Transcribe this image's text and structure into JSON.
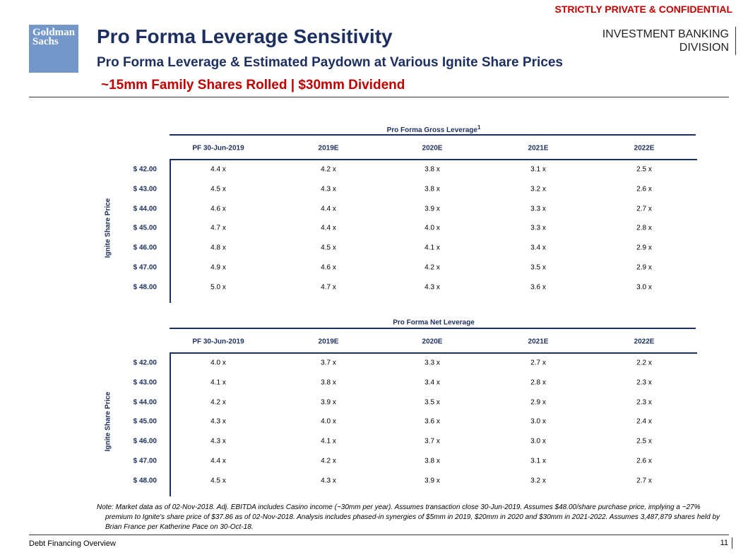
{
  "header": {
    "confidential": "STRICTLY PRIVATE & CONFIDENTIAL",
    "logo": [
      "Goldman",
      "Sachs"
    ],
    "title": "Pro Forma Leverage Sensitivity",
    "subtitle": "Pro Forma Leverage & Estimated Paydown at Various Ignite Share Prices",
    "scenario": "~15mm Family Shares Rolled | $30mm Dividend",
    "division": [
      "INVESTMENT BANKING",
      "DIVISION"
    ]
  },
  "tables": [
    {
      "title": "Pro Forma Gross Leverage",
      "footnote_mark": "1",
      "row_axis_label": "Ignite Share Price",
      "columns": [
        "PF 30-Jun-2019",
        "2019E",
        "2020E",
        "2021E",
        "2022E"
      ],
      "rows": [
        {
          "price": "$ 42.00",
          "values": [
            "4.4 x",
            "4.2 x",
            "3.8 x",
            "3.1 x",
            "2.5 x"
          ]
        },
        {
          "price": "$ 43.00",
          "values": [
            "4.5 x",
            "4.3 x",
            "3.8 x",
            "3.2 x",
            "2.6 x"
          ]
        },
        {
          "price": "$ 44.00",
          "values": [
            "4.6 x",
            "4.4 x",
            "3.9 x",
            "3.3 x",
            "2.7 x"
          ]
        },
        {
          "price": "$ 45.00",
          "values": [
            "4.7 x",
            "4.4 x",
            "4.0 x",
            "3.3 x",
            "2.8 x"
          ]
        },
        {
          "price": "$ 46.00",
          "values": [
            "4.8 x",
            "4.5 x",
            "4.1 x",
            "3.4 x",
            "2.9 x"
          ]
        },
        {
          "price": "$ 47.00",
          "values": [
            "4.9 x",
            "4.6 x",
            "4.2 x",
            "3.5 x",
            "2.9 x"
          ]
        },
        {
          "price": "$ 48.00",
          "values": [
            "5.0 x",
            "4.7 x",
            "4.3 x",
            "3.6 x",
            "3.0 x"
          ]
        }
      ]
    },
    {
      "title": "Pro Forma Net Leverage",
      "row_axis_label": "Ignite Share Price",
      "columns": [
        "PF 30-Jun-2019",
        "2019E",
        "2020E",
        "2021E",
        "2022E"
      ],
      "rows": [
        {
          "price": "$ 42.00",
          "values": [
            "4.0 x",
            "3.7 x",
            "3.3 x",
            "2.7 x",
            "2.2 x"
          ]
        },
        {
          "price": "$ 43.00",
          "values": [
            "4.1 x",
            "3.8 x",
            "3.4 x",
            "2.8 x",
            "2.3 x"
          ]
        },
        {
          "price": "$ 44.00",
          "values": [
            "4.2 x",
            "3.9 x",
            "3.5 x",
            "2.9 x",
            "2.3 x"
          ]
        },
        {
          "price": "$ 45.00",
          "values": [
            "4.3 x",
            "4.0 x",
            "3.6 x",
            "3.0 x",
            "2.4 x"
          ]
        },
        {
          "price": "$ 46.00",
          "values": [
            "4.3 x",
            "4.1 x",
            "3.7 x",
            "3.0 x",
            "2.5 x"
          ]
        },
        {
          "price": "$ 47.00",
          "values": [
            "4.4 x",
            "4.2 x",
            "3.8 x",
            "3.1 x",
            "2.6 x"
          ]
        },
        {
          "price": "$ 48.00",
          "values": [
            "4.5 x",
            "4.3 x",
            "3.9 x",
            "3.2 x",
            "2.7 x"
          ]
        }
      ]
    }
  ],
  "note": "Note: Market data as of 02-Nov-2018. Adj. EBITDA includes Casino income (~30mm per year). Assumes transaction close 30-Jun-2019. Assumes $48.00/share purchase price, implying a ~27% premium to Ignite's share price of $37.86 as of 02-Nov-2018. Analysis includes phased-in synergies of $5mm in 2019, $20mm in 2020 and $30mm in 2021-2022. Assumes 3,487,879 shares held by Brian France per Katherine Pace on 30-Oct-18.",
  "footer": {
    "section": "Debt Financing Overview",
    "page": "11"
  }
}
